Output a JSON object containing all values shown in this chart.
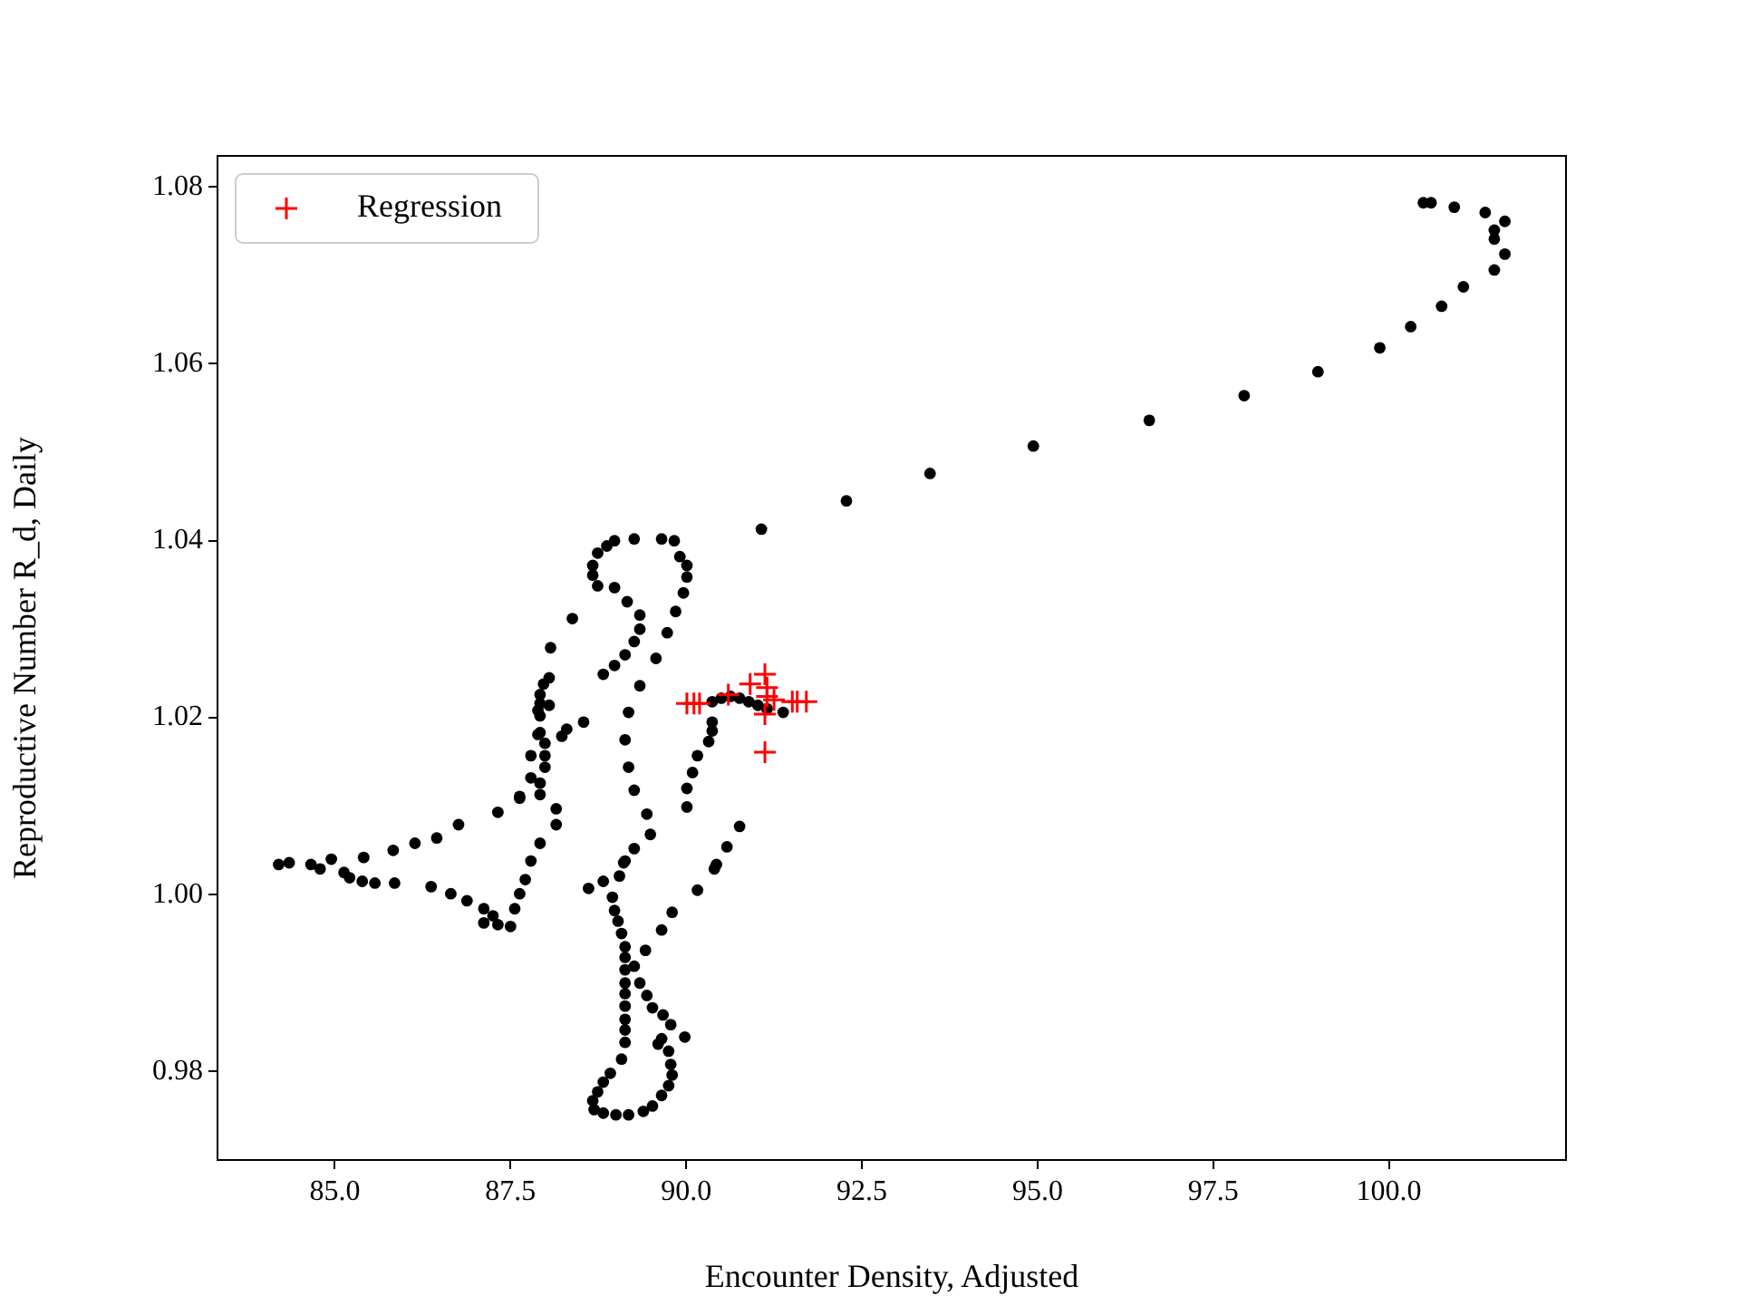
{
  "chart_data": {
    "type": "scatter",
    "xlabel": "Encounter Density, Adjusted",
    "ylabel": "Reproductive Number R_d, Daily",
    "legend": "top left",
    "xlim": [
      83.33,
      102.52
    ],
    "ylim": [
      0.97,
      1.0835
    ],
    "xticks": [
      {
        "value": 85,
        "label": "85.0"
      },
      {
        "value": 87.5,
        "label": "87.5"
      },
      {
        "value": 90,
        "label": "90.0"
      },
      {
        "value": 92.5,
        "label": "92.5"
      },
      {
        "value": 95,
        "label": "95.0"
      },
      {
        "value": 97.5,
        "label": "97.5"
      },
      {
        "value": 100,
        "label": "100.0"
      }
    ],
    "yticks": [
      {
        "value": 0.98,
        "label": "0.98"
      },
      {
        "value": 1,
        "label": "1.00"
      },
      {
        "value": 1.02,
        "label": "1.02"
      },
      {
        "value": 1.04,
        "label": "1.04"
      },
      {
        "value": 1.06,
        "label": "1.06"
      },
      {
        "value": 1.08,
        "label": "1.08"
      }
    ],
    "series": [
      {
        "color": "#000000",
        "marker": "circle",
        "x": [
          91.07,
          92.28,
          93.47,
          94.94,
          96.59,
          97.94,
          98.99,
          99.87,
          100.31,
          100.75,
          101.06,
          101.5,
          101.65,
          101.5,
          101.5,
          101.65,
          101.37,
          100.93,
          100.6,
          100.49,
          89.26,
          89.65,
          89.83,
          88.98,
          88.87,
          88.74,
          89.91,
          88.67,
          90.01,
          88.67,
          90.01,
          88.74,
          88.98,
          89.96,
          89.16,
          89.85,
          89.34,
          88.38,
          89.34,
          89.73,
          89.26,
          88.07,
          89.13,
          89.57,
          88.98,
          88.82,
          88.05,
          87.97,
          89.34,
          87.92,
          87.92,
          88.05,
          87.92,
          89.18,
          90.37,
          88.54,
          88.3,
          88.23,
          87.92,
          90.37,
          89.13,
          90.32,
          87.99,
          87.79,
          87.99,
          90.16,
          89.18,
          87.99,
          90.09,
          87.79,
          87.92,
          90.01,
          87.63,
          87.92,
          89.26,
          88.15,
          90.01,
          89.44,
          88.15,
          90.76,
          89.49,
          87.92,
          90.58,
          89.26,
          87.79,
          89.13,
          90.43,
          90.37,
          90.5,
          90.63,
          90.76,
          90.89,
          91.02,
          91.15,
          91.38,
          87.89,
          87.89,
          87.63,
          87.32,
          86.76,
          86.45,
          86.14,
          85.83,
          85.41,
          84.95,
          84.66,
          84.35,
          84.2,
          84.79,
          85.13,
          85.21,
          85.39,
          85.57,
          85.85,
          86.37,
          86.65,
          86.88,
          87.12,
          87.25,
          87.12,
          87.32,
          87.5,
          87.56,
          87.63,
          87.71,
          89.11,
          89.05,
          88.82,
          88.61,
          88.95,
          88.98,
          89.03,
          89.08,
          89.13,
          89.13,
          89.26,
          89.13,
          89.13,
          89.34,
          89.13,
          89.44,
          89.13,
          89.52,
          89.13,
          89.67,
          89.13,
          89.78,
          89.65,
          89.98,
          89.6,
          89.13,
          89.75,
          89.08,
          89.78,
          88.92,
          89.8,
          88.82,
          89.75,
          88.74,
          89.65,
          88.67,
          89.52,
          88.69,
          89.39,
          88.82,
          89.0,
          89.18,
          90.4,
          90.16,
          89.8,
          89.65,
          89.42
        ],
        "values": [
          1.0413,
          1.0445,
          1.0476,
          1.0507,
          1.0536,
          1.0564,
          1.0591,
          1.0618,
          1.0642,
          1.0665,
          1.0687,
          1.0706,
          1.0724,
          1.0741,
          1.0751,
          1.0761,
          1.0771,
          1.0777,
          1.0782,
          1.0782,
          1.0402,
          1.0402,
          1.04,
          1.04,
          1.0394,
          1.0386,
          1.0382,
          1.0372,
          1.0372,
          1.0361,
          1.0359,
          1.0349,
          1.0347,
          1.0341,
          1.0331,
          1.032,
          1.0316,
          1.0312,
          1.03,
          1.0296,
          1.0286,
          1.0279,
          1.0271,
          1.0267,
          1.0259,
          1.0249,
          1.0245,
          1.0238,
          1.0236,
          1.0226,
          1.0216,
          1.0214,
          1.0202,
          1.0206,
          1.0195,
          1.0195,
          1.0187,
          1.0179,
          1.0183,
          1.0185,
          1.0175,
          1.0173,
          1.0171,
          1.0157,
          1.0157,
          1.0157,
          1.0144,
          1.0144,
          1.0138,
          1.0132,
          1.0126,
          1.012,
          1.0111,
          1.0113,
          1.0118,
          1.0097,
          1.0099,
          1.0091,
          1.0079,
          1.0077,
          1.0068,
          1.0058,
          1.0054,
          1.0052,
          1.0038,
          1.0038,
          1.0034,
          1.0218,
          1.0222,
          1.0224,
          1.0222,
          1.0218,
          1.0214,
          1.021,
          1.0206,
          1.0208,
          1.0181,
          1.0109,
          1.0093,
          1.0079,
          1.0064,
          1.0058,
          1.005,
          1.0042,
          1.004,
          1.0034,
          1.0036,
          1.0034,
          1.0029,
          1.0025,
          1.0019,
          1.0015,
          1.0013,
          1.0013,
          1.0009,
          1.0001,
          0.9993,
          0.9984,
          0.9976,
          0.9968,
          0.9966,
          0.9964,
          0.9984,
          1.0001,
          1.0017,
          1.0036,
          1.0021,
          1.0015,
          1.0007,
          0.9997,
          0.9982,
          0.997,
          0.9956,
          0.9941,
          0.9929,
          0.9919,
          0.9915,
          0.99,
          0.99,
          0.9888,
          0.9886,
          0.9874,
          0.9872,
          0.9859,
          0.9864,
          0.9847,
          0.9853,
          0.9837,
          0.9839,
          0.9831,
          0.9833,
          0.9823,
          0.9814,
          0.9808,
          0.9798,
          0.9796,
          0.9788,
          0.9784,
          0.9777,
          0.9773,
          0.9767,
          0.9761,
          0.9757,
          0.9755,
          0.9753,
          0.9751,
          0.9751,
          1.0029,
          1.0005,
          0.998,
          0.996,
          0.9937
        ]
      },
      {
        "name": "Regression",
        "color": "#ff0000",
        "marker": "cross",
        "x": [
          90.01,
          90.11,
          90.19,
          90.91,
          91.12,
          91.15,
          91.15,
          91.12,
          91.12,
          91.51,
          91.58,
          91.71,
          90.6,
          91.25
        ],
        "values": [
          1.0216,
          1.0216,
          1.0216,
          1.0238,
          1.0249,
          1.0234,
          1.0224,
          1.0204,
          1.0161,
          1.0218,
          1.0218,
          1.0218,
          1.0226,
          1.022
        ]
      }
    ]
  }
}
